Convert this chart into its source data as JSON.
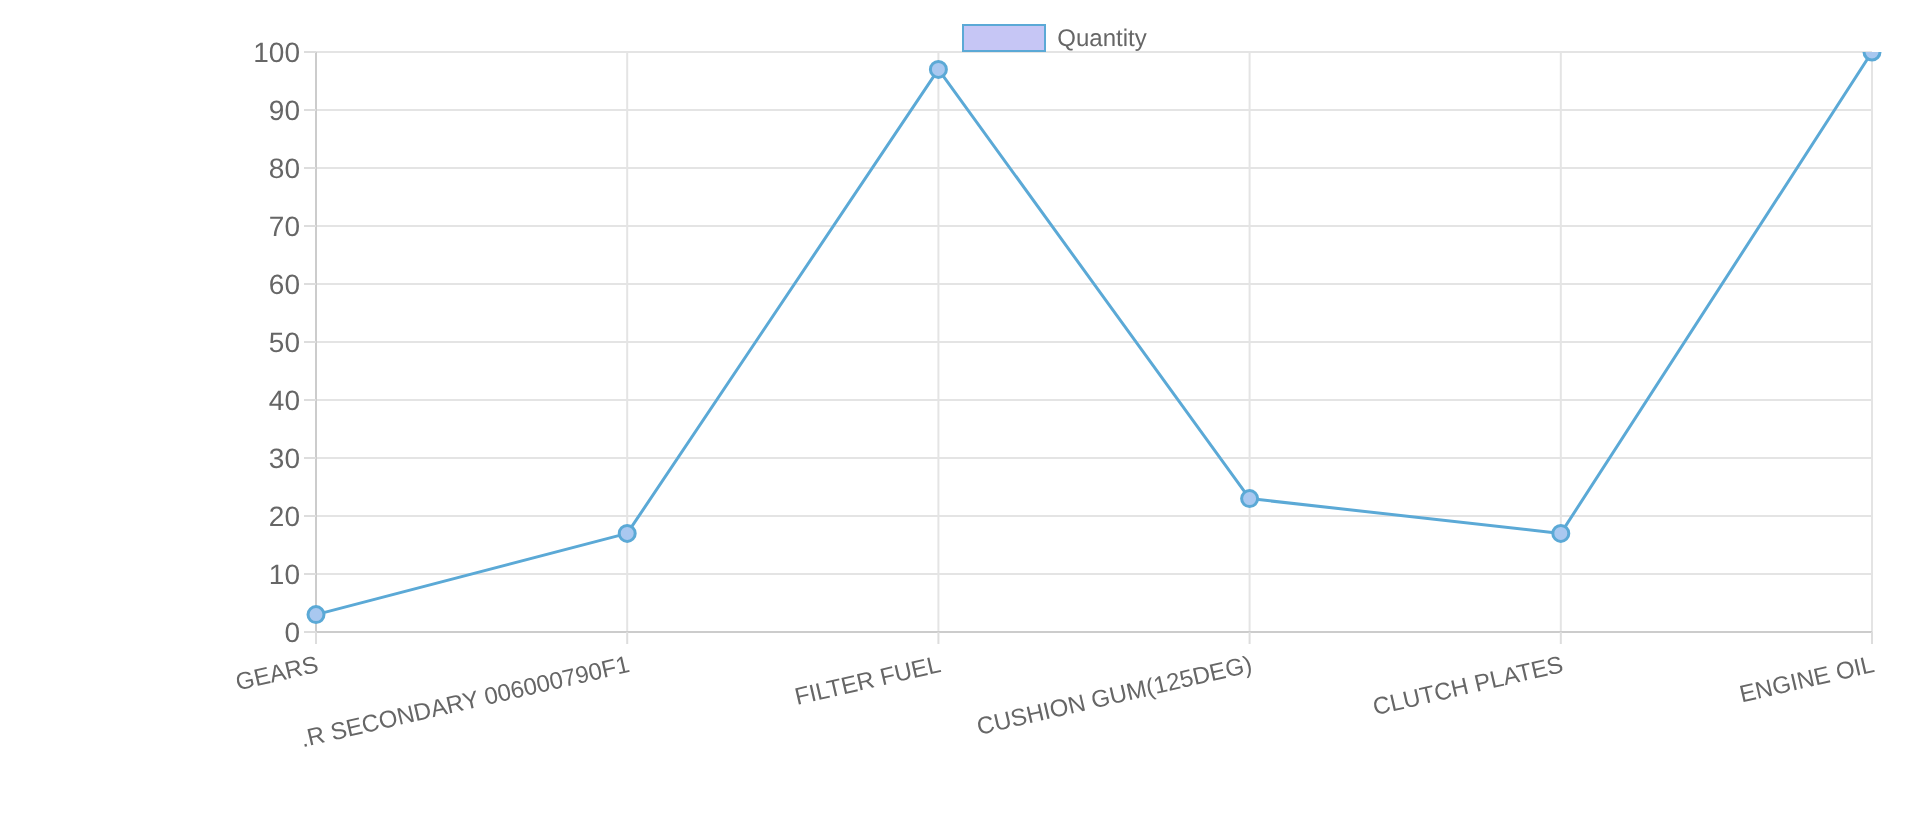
{
  "chart_data": {
    "type": "line",
    "categories": [
      "GEARS",
      ".R SECONDARY 006000790F1",
      "FILTER FUEL",
      "CUSHION GUM(125DEG)",
      "CLUTCH PLATES",
      "ENGINE OIL"
    ],
    "series": [
      {
        "name": "Quantity",
        "color": "#5ba9d6",
        "values": [
          3,
          17,
          97,
          23,
          17,
          100
        ]
      }
    ],
    "ylim": [
      0,
      100
    ],
    "yticks": [
      0,
      10,
      20,
      30,
      40,
      50,
      60,
      70,
      80,
      90,
      100
    ],
    "grid": true,
    "legend": "top",
    "marker": "circle"
  }
}
